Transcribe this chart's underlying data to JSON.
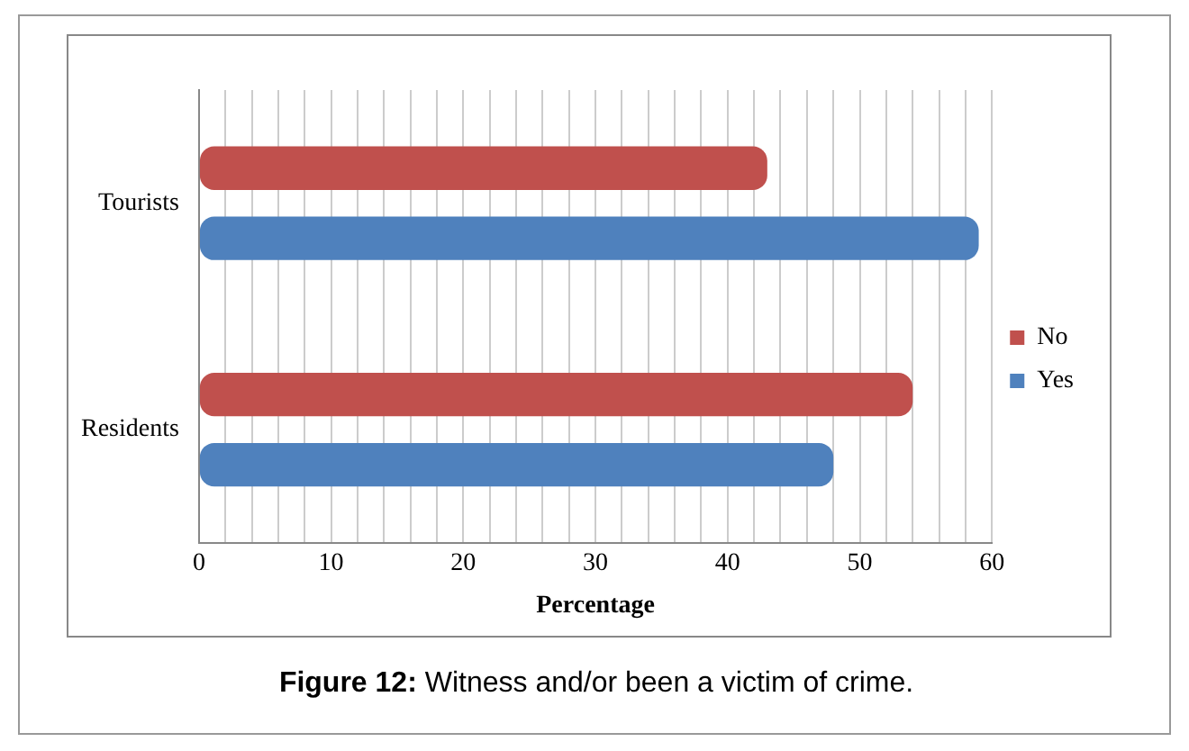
{
  "chart_data": {
    "type": "bar",
    "orientation": "horizontal",
    "categories": [
      "Tourists",
      "Residents"
    ],
    "series": [
      {
        "name": "No",
        "color": "#c0504d",
        "values": [
          43,
          54
        ]
      },
      {
        "name": "Yes",
        "color": "#4f81bd",
        "values": [
          59,
          48
        ]
      }
    ],
    "xlabel": "Percentage",
    "xlim": [
      0,
      60
    ],
    "xticks": [
      0,
      {
        "value": 2,
        "label": null
      },
      {
        "value": 4,
        "label": null
      },
      {
        "value": 6,
        "label": null
      },
      {
        "value": 8,
        "label": null
      },
      10,
      {
        "value": 12,
        "label": null
      },
      {
        "value": 14,
        "label": null
      },
      {
        "value": 16,
        "label": null
      },
      {
        "value": 18,
        "label": null
      },
      20,
      {
        "value": 22,
        "label": null
      },
      {
        "value": 24,
        "label": null
      },
      {
        "value": 26,
        "label": null
      },
      {
        "value": 28,
        "label": null
      },
      30,
      {
        "value": 32,
        "label": null
      },
      {
        "value": 34,
        "label": null
      },
      {
        "value": 36,
        "label": null
      },
      {
        "value": 38,
        "label": null
      },
      40,
      {
        "value": 42,
        "label": null
      },
      {
        "value": 44,
        "label": null
      },
      {
        "value": 46,
        "label": null
      },
      {
        "value": 48,
        "label": null
      },
      50,
      {
        "value": 52,
        "label": null
      },
      {
        "value": 54,
        "label": null
      },
      {
        "value": 56,
        "label": null
      },
      {
        "value": 58,
        "label": null
      },
      60
    ],
    "grid": "x",
    "legend": "right",
    "annotations": [
      "Figure 12: Witness and/or been a victim of crime."
    ]
  }
}
